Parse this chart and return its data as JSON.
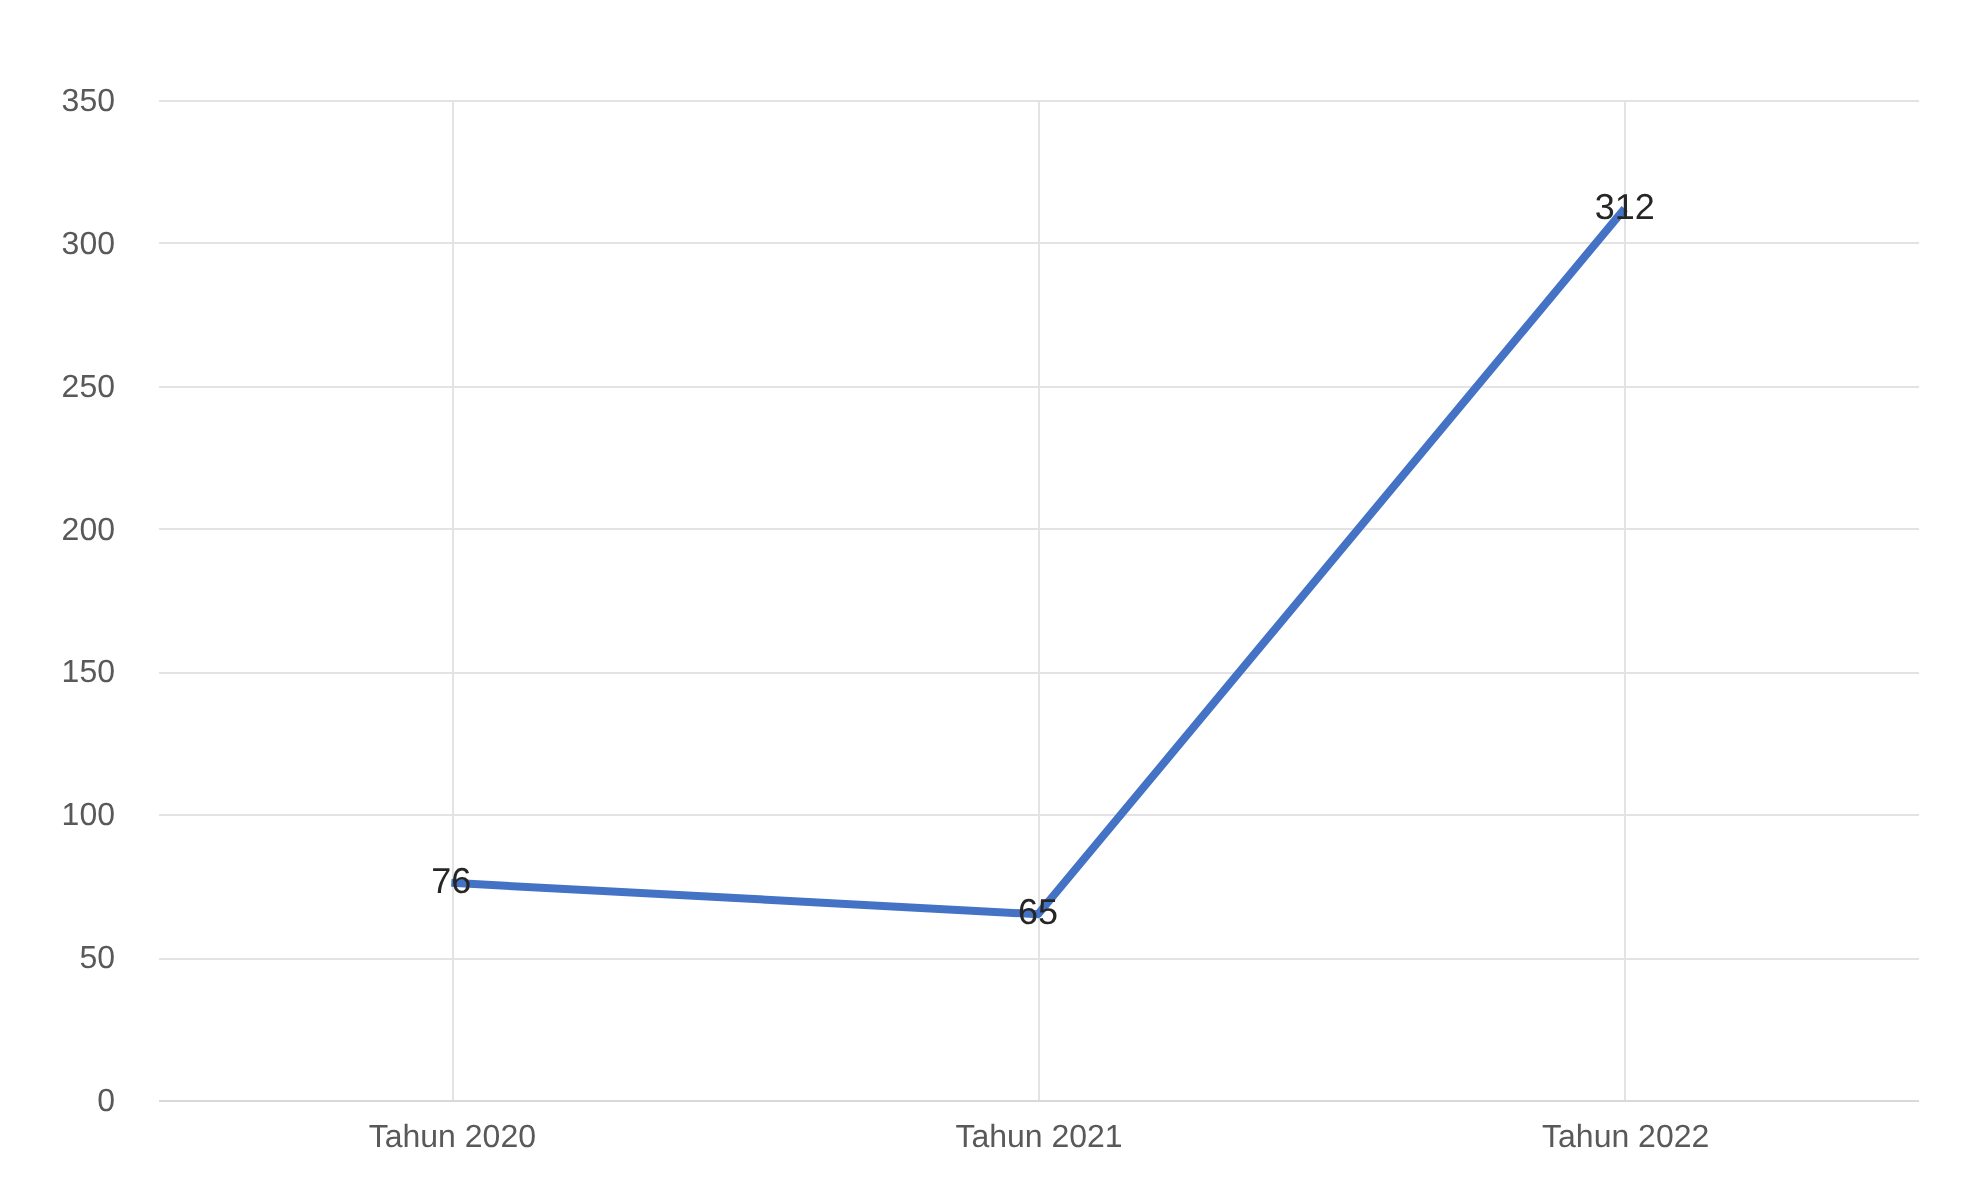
{
  "chart_data": {
    "type": "line",
    "categories": [
      "Tahun 2020",
      "Tahun 2021",
      "Tahun 2022"
    ],
    "series": [
      {
        "color": "#4472c4",
        "values": [
          76,
          65,
          312
        ]
      }
    ],
    "ylim": [
      0,
      350
    ],
    "yticks": [
      0,
      50,
      100,
      150,
      200,
      250,
      300,
      350
    ],
    "grid": true,
    "data_labels": true,
    "marker": "none",
    "line_style": "solid"
  }
}
